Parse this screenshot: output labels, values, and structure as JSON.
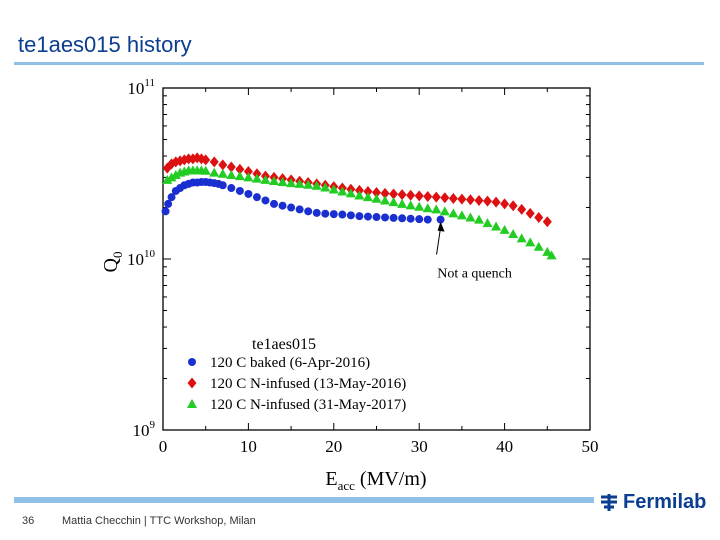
{
  "slide": {
    "title": "te1aes015 history",
    "page_number": "36",
    "footer": "Mattia Checchin | TTC Workshop, Milan",
    "logo_text": "Fermilab"
  },
  "colors": {
    "title": "#0b3d91",
    "accent_rule": "#8fc1e8",
    "series_blue": "#1a2fd0",
    "series_red": "#dd1111",
    "series_green": "#22cc22"
  },
  "chart_data": {
    "type": "scatter",
    "yscale": "log",
    "xlim": [
      0,
      50
    ],
    "ylim": [
      1000000000.0,
      100000000000.0
    ],
    "x_ticks": [
      "0",
      "10",
      "20",
      "30",
      "40",
      "50"
    ],
    "y_ticks": [
      {
        "base": "10",
        "exp": "11",
        "value": 100000000000.0
      },
      {
        "base": "10",
        "exp": "10",
        "value": 10000000000.0
      },
      {
        "base": "10",
        "exp": "9",
        "value": 1000000000.0
      }
    ],
    "xlabel": {
      "main": "E",
      "sub": "acc",
      "rest": " (MV/m)"
    },
    "ylabel": {
      "main": "Q",
      "sub": "0"
    },
    "legend_title": "te1aes015",
    "annotation": "Not a quench",
    "annotation_arrow_target": {
      "x": 32.5,
      "y": 17000000000.0
    },
    "series": [
      {
        "name": "120 C baked (6-Apr-2016)",
        "marker": "circle",
        "color": "#1a2fd0",
        "x": [
          0.3,
          0.6,
          1,
          1.5,
          2,
          2.5,
          3,
          3.5,
          4,
          4.5,
          5,
          5.5,
          6,
          6.5,
          7,
          8,
          9,
          10,
          11,
          12,
          13,
          14,
          15,
          16,
          17,
          18,
          19,
          20,
          21,
          22,
          23,
          24,
          25,
          26,
          27,
          28,
          29,
          30,
          31,
          32.5
        ],
        "y": [
          19000000000.0,
          21000000000.0,
          23000000000.0,
          25000000000.0,
          26000000000.0,
          27000000000.0,
          27500000000.0,
          28000000000.0,
          28000000000.0,
          28200000000.0,
          28200000000.0,
          28000000000.0,
          27800000000.0,
          27500000000.0,
          27000000000.0,
          26000000000.0,
          25000000000.0,
          24000000000.0,
          23000000000.0,
          22000000000.0,
          21000000000.0,
          20500000000.0,
          20000000000.0,
          19500000000.0,
          19000000000.0,
          18600000000.0,
          18400000000.0,
          18300000000.0,
          18200000000.0,
          18000000000.0,
          17800000000.0,
          17700000000.0,
          17600000000.0,
          17500000000.0,
          17400000000.0,
          17300000000.0,
          17200000000.0,
          17100000000.0,
          17000000000.0,
          17000000000.0
        ]
      },
      {
        "name": "120 C N-infused (13-May-2016)",
        "marker": "diamond",
        "color": "#dd1111",
        "x": [
          0.5,
          1,
          1.5,
          2,
          2.5,
          3,
          3.5,
          4,
          4.5,
          5,
          6,
          7,
          8,
          9,
          10,
          11,
          12,
          13,
          14,
          15,
          16,
          17,
          18,
          19,
          20,
          21,
          22,
          23,
          24,
          25,
          26,
          27,
          28,
          29,
          30,
          31,
          32,
          33,
          34,
          35,
          36,
          37,
          38,
          39,
          40,
          41,
          42,
          43,
          44,
          45
        ],
        "y": [
          34000000000.0,
          36000000000.0,
          37000000000.0,
          37500000000.0,
          38000000000.0,
          38500000000.0,
          38500000000.0,
          39000000000.0,
          38500000000.0,
          38000000000.0,
          37000000000.0,
          35500000000.0,
          34500000000.0,
          33500000000.0,
          32500000000.0,
          31500000000.0,
          30500000000.0,
          30000000000.0,
          29500000000.0,
          29000000000.0,
          28500000000.0,
          28000000000.0,
          27500000000.0,
          27000000000.0,
          26500000000.0,
          26000000000.0,
          25600000000.0,
          25200000000.0,
          24800000000.0,
          24500000000.0,
          24200000000.0,
          24000000000.0,
          23800000000.0,
          23600000000.0,
          23400000000.0,
          23200000000.0,
          23000000000.0,
          22800000000.0,
          22600000000.0,
          22400000000.0,
          22200000000.0,
          22000000000.0,
          21800000000.0,
          21500000000.0,
          21000000000.0,
          20500000000.0,
          19500000000.0,
          18500000000.0,
          17500000000.0,
          16500000000.0
        ]
      },
      {
        "name": "120 C N-infused (31-May-2017)",
        "marker": "triangle",
        "color": "#22cc22",
        "x": [
          0.5,
          1,
          1.5,
          2,
          2.5,
          3,
          3.5,
          4,
          4.5,
          5,
          6,
          7,
          8,
          9,
          10,
          11,
          12,
          13,
          14,
          15,
          16,
          17,
          18,
          19,
          20,
          21,
          22,
          23,
          24,
          25,
          26,
          27,
          28,
          29,
          30,
          31,
          32,
          33,
          34,
          35,
          36,
          37,
          38,
          39,
          40,
          41,
          42,
          43,
          44,
          45,
          45.5
        ],
        "y": [
          29000000000.0,
          30000000000.0,
          31000000000.0,
          32000000000.0,
          32500000000.0,
          33000000000.0,
          33000000000.0,
          33000000000.0,
          33000000000.0,
          32800000000.0,
          32000000000.0,
          31500000000.0,
          31000000000.0,
          30500000000.0,
          30000000000.0,
          29500000000.0,
          29000000000.0,
          28600000000.0,
          28200000000.0,
          27800000000.0,
          27500000000.0,
          27200000000.0,
          26800000000.0,
          26200000000.0,
          25500000000.0,
          24800000000.0,
          24200000000.0,
          23500000000.0,
          23000000000.0,
          22500000000.0,
          22000000000.0,
          21500000000.0,
          21000000000.0,
          20600000000.0,
          20200000000.0,
          19800000000.0,
          19500000000.0,
          19000000000.0,
          18500000000.0,
          18000000000.0,
          17500000000.0,
          17000000000.0,
          16200000000.0,
          15500000000.0,
          14800000000.0,
          14000000000.0,
          13200000000.0,
          12500000000.0,
          11800000000.0,
          11000000000.0,
          10500000000.0
        ]
      }
    ]
  }
}
